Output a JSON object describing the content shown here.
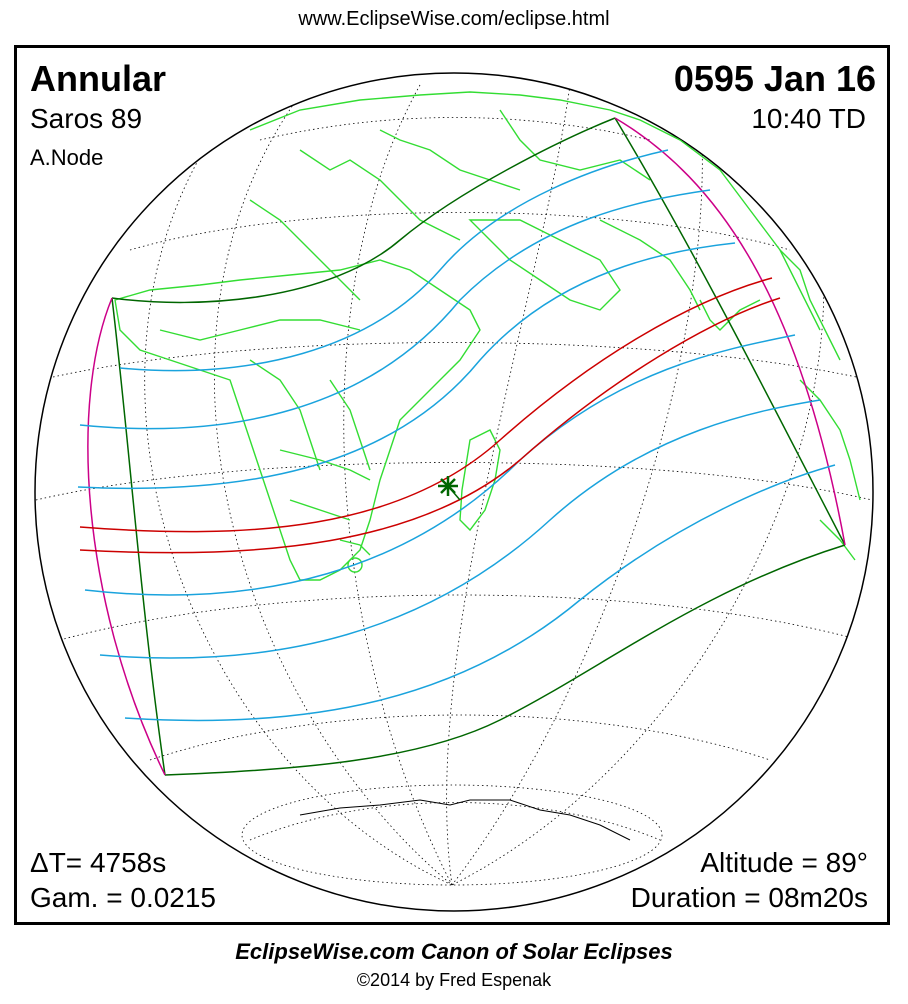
{
  "header": {
    "url": "www.EclipseWise.com/eclipse.html"
  },
  "eclipse": {
    "type": "Annular",
    "saros": "Saros  89",
    "node": "A.Node",
    "date": "0595 Jan 16",
    "time": "10:40 TD",
    "delta_t": "ΔT=   4758s",
    "gamma": "Gam. = 0.0215",
    "altitude": "Altitude = 89°",
    "duration": "Duration = 08m20s"
  },
  "footer": {
    "canon": "EclipseWise.com Canon of Solar Eclipses",
    "copyright": "©2014 by Fred Espenak"
  },
  "colors": {
    "coastline": "#33dd33",
    "central_path": "#cc0000",
    "magnitude_lines": "#1aa3dd",
    "penumbra_limits": "#006600",
    "rise_set_curves": "#cc0088",
    "graticule": "#000000"
  },
  "markers": {
    "greatest_eclipse": "star-icon"
  }
}
